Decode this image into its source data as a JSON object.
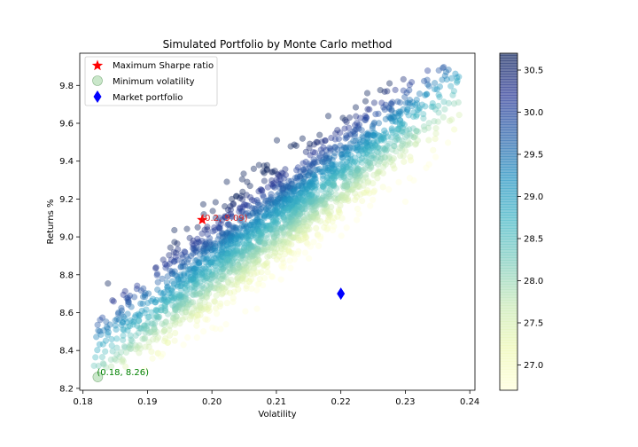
{
  "chart_data": {
    "type": "scatter",
    "title": "Simulated Portfolio by Monte Carlo method",
    "xlabel": "Volatility",
    "ylabel": "Returns %",
    "xlim": [
      0.1795,
      0.2408
    ],
    "ylim": [
      8.19,
      9.97
    ],
    "xticks": [
      "0.18",
      "0.19",
      "0.20",
      "0.21",
      "0.22",
      "0.23",
      "0.24"
    ],
    "yticks": [
      "8.2",
      "8.4",
      "8.6",
      "8.8",
      "9.0",
      "9.2",
      "9.4",
      "9.6",
      "9.8"
    ],
    "grid": false,
    "colormap": "YlGnBu",
    "colorbar": {
      "range": [
        26.7,
        30.7
      ],
      "ticks": [
        "27.0",
        "27.5",
        "28.0",
        "28.5",
        "29.0",
        "29.5",
        "30.0",
        "30.5"
      ],
      "colors": [
        "#ffffd9",
        "#edf8b1",
        "#c7e9b4",
        "#7fcdbb",
        "#41b6c4",
        "#1d91c0",
        "#225ea8",
        "#253494",
        "#081d58"
      ]
    },
    "series": [
      {
        "name": "Maximum Sharpe ratio",
        "marker": "star",
        "color": "#ff0000",
        "x": 0.1985,
        "y": 9.09,
        "label": "(0.2, 9.09)"
      },
      {
        "name": "Minimum volatility",
        "marker": "circle",
        "color": "#9fd39f",
        "x": 0.1823,
        "y": 8.26,
        "label": "(0.18, 8.26)",
        "label_color": "#008000"
      },
      {
        "name": "Market portfolio",
        "marker": "diamond",
        "color": "#0000ff",
        "x": 0.22,
        "y": 8.7
      }
    ],
    "legend": "upper-left",
    "cloud": {
      "description_x_range": [
        0.182,
        0.238
      ],
      "description_y_range": [
        8.33,
        9.88
      ]
    }
  }
}
